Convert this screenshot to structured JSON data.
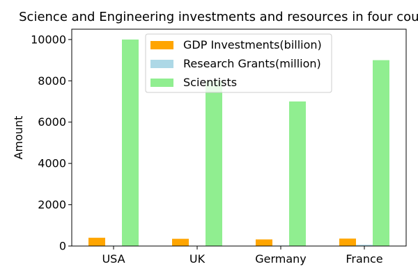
{
  "chart_data": {
    "type": "bar",
    "title": "Science and Engineering investments and resources in four countries",
    "xlabel": "",
    "ylabel": "Amount",
    "categories": [
      "USA",
      "UK",
      "Germany",
      "France"
    ],
    "series": [
      {
        "name": "GDP Investments(billion)",
        "color": "#FFA500",
        "values": [
          400,
          350,
          320,
          360
        ]
      },
      {
        "name": "Research Grants(million)",
        "color": "#ADD8E6",
        "values": [
          20,
          15,
          25,
          60
        ]
      },
      {
        "name": "Scientists",
        "color": "#90EE90",
        "values": [
          10000,
          8000,
          7000,
          9000
        ]
      }
    ],
    "ylim": [
      0,
      10500
    ],
    "yticks": [
      0,
      2000,
      4000,
      6000,
      8000,
      10000
    ],
    "grid": false,
    "legend_position": "top-center"
  }
}
